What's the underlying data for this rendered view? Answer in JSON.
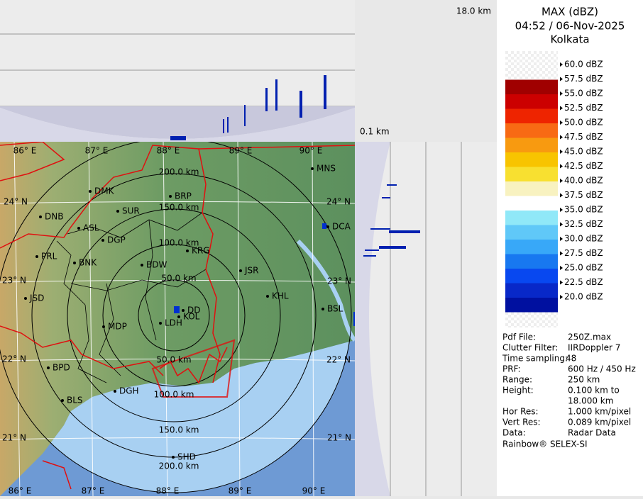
{
  "header": {
    "title": "MAX (dBZ)",
    "datetime": "04:52 / 06-Nov-2025",
    "station": "Kolkata"
  },
  "cross_section": {
    "top_height": "18.0 km",
    "bottom_height": "0.1 km"
  },
  "legend": {
    "items": [
      {
        "label": "60.0 dBZ",
        "color": "none"
      },
      {
        "label": "57.5 dBZ",
        "color": "#a00000"
      },
      {
        "label": "55.0 dBZ",
        "color": "#cc0000"
      },
      {
        "label": "52.5 dBZ",
        "color": "#ee2400"
      },
      {
        "label": "50.0 dBZ",
        "color": "#f86a14"
      },
      {
        "label": "47.5 dBZ",
        "color": "#f89a10"
      },
      {
        "label": "45.0 dBZ",
        "color": "#f8c400"
      },
      {
        "label": "42.5 dBZ",
        "color": "#f8e030"
      },
      {
        "label": "40.0 dBZ",
        "color": "#f8f2c0"
      },
      {
        "label": "37.5 dBZ",
        "color": "#ffffff"
      },
      {
        "label": "35.0 dBZ",
        "color": "#90e8f8"
      },
      {
        "label": "32.5 dBZ",
        "color": "#60c8f8"
      },
      {
        "label": "30.0 dBZ",
        "color": "#38a8f8"
      },
      {
        "label": "27.5 dBZ",
        "color": "#1878f0"
      },
      {
        "label": "25.0 dBZ",
        "color": "#0848f0"
      },
      {
        "label": "22.5 dBZ",
        "color": "#0828c8"
      },
      {
        "label": "20.0 dBZ",
        "color": "#0010a0"
      }
    ]
  },
  "info": {
    "rows": [
      [
        "Pdf File:",
        "250Z.max"
      ],
      [
        "Clutter Filter:",
        "IIRDoppler 7"
      ],
      [
        "Time sampling:",
        "48"
      ],
      [
        "PRF:",
        "600 Hz / 450 Hz"
      ],
      [
        "Range:",
        "250 km"
      ],
      [
        "Height:",
        "0.100 km to"
      ],
      [
        "",
        "18.000 km"
      ],
      [
        "Hor Res:",
        "1.000 km/pixel"
      ],
      [
        "Vert Res:",
        "0.089 km/pixel"
      ],
      [
        "Data:",
        "Radar Data"
      ]
    ],
    "footer": "Rainbow® SELEX-SI"
  },
  "map": {
    "lon_labels_top": [
      "86° E",
      "87° E",
      "88° E",
      "89° E",
      "90° E"
    ],
    "lon_labels_bottom": [
      "86° E",
      "87° E",
      "88° E",
      "89° E",
      "90° E"
    ],
    "lat_labels_left": [
      "24° N",
      "23° N",
      "22° N",
      "21° N"
    ],
    "lat_labels_right": [
      "24° N",
      "23° N",
      "22° N",
      "21° N"
    ],
    "ring_labels_north": [
      "200.0 km",
      "150.0 km",
      "100.0 km",
      "50.0 km"
    ],
    "ring_labels_south": [
      "50.0 km",
      "100.0 km",
      "150.0 km",
      "200.0 km"
    ],
    "stations": [
      "MNS",
      "DMK",
      "BRP",
      "DNB",
      "SUR",
      "ASL",
      "DGP",
      "KRG",
      "PRL",
      "BNK",
      "BDW",
      "JSR",
      "DCA",
      "JSD",
      "KHL",
      "BSL",
      "DD",
      "KOL",
      "MDP",
      "LDH",
      "BPD",
      "DGH",
      "BLS",
      "SHD"
    ]
  }
}
